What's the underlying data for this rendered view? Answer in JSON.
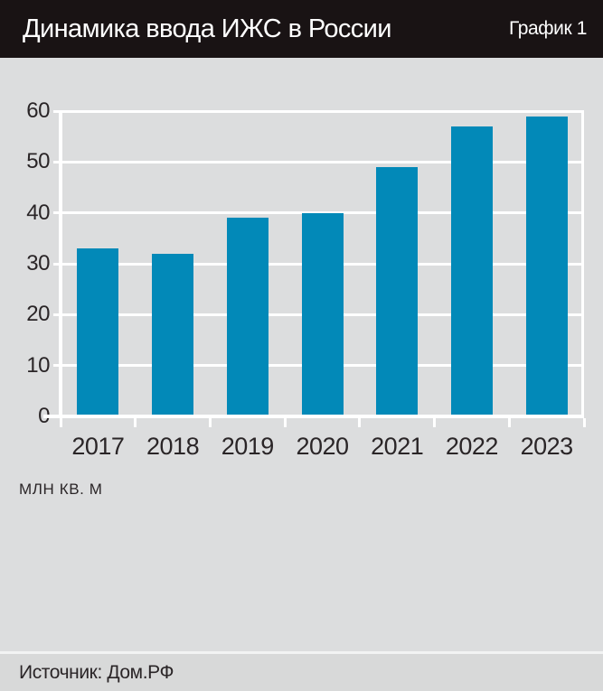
{
  "header": {
    "title": "Динамика ввода ИЖС в России",
    "chart_label": "График 1"
  },
  "chart_data": {
    "type": "bar",
    "title": "Динамика ввода ИЖС в России",
    "categories": [
      "2017",
      "2018",
      "2019",
      "2020",
      "2021",
      "2022",
      "2023"
    ],
    "values": [
      33,
      32,
      39,
      40,
      49,
      57,
      59
    ],
    "unit_label": "млн кв. м",
    "xlabel": "",
    "ylabel": "млн кв. м",
    "ylim": [
      0,
      60
    ],
    "yticks": [
      0,
      10,
      20,
      30,
      40,
      50,
      60
    ],
    "grid": true,
    "legend_position": "none",
    "bar_color": "#0289b8",
    "plot_background": "#dcddde",
    "gridline_color": "#ffffff"
  },
  "footer": {
    "source": "Источник: Дом.РФ"
  },
  "colors": {
    "header_background": "#191314",
    "header_text": "#ffffff",
    "body_background": "#dcddde",
    "footer_background": "#d8d9d9",
    "bar": "#0289b8",
    "axis_text": "#2a2527",
    "gridline": "#ffffff"
  }
}
